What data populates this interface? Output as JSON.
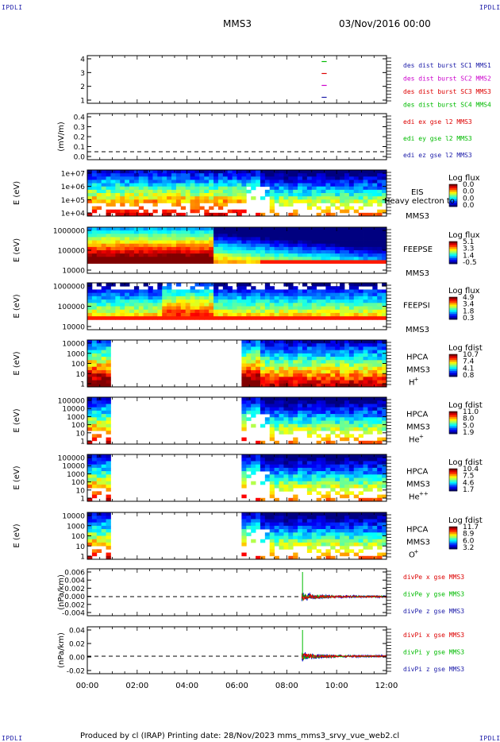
{
  "corner_labels": {
    "top_left": "IPDLI",
    "top_right": "IPDLI",
    "bottom_left": "IPDLI",
    "bottom_right": "IPDLI"
  },
  "header": {
    "spacecraft": "MMS3",
    "date": "03/Nov/2016 00:00"
  },
  "footer": {
    "text": "Produced by cl (IRAP)   Printing date: 28/Nov/2023   mms_mms3_srvy_vue_web2.cl"
  },
  "colors": {
    "red": "#dd0000",
    "green": "#00bb00",
    "blue": "#0000cc",
    "magenta": "#cc00cc",
    "navy": "#1a1aa8",
    "accent": "#ff0000"
  },
  "chart_data": [
    {
      "type": "line",
      "id": "sc-availability",
      "ylabel": "",
      "ytick_labels": [
        "4",
        "3",
        "2",
        "1"
      ],
      "ylim": [
        0.5,
        4.5
      ],
      "x_ticks": [
        "00:00",
        "02:00",
        "04:00",
        "06:00",
        "08:00",
        "10:00",
        "12:00"
      ],
      "xlim_hours": [
        0,
        12
      ],
      "series": [
        {
          "name": "des dist burst SC1 MMS1",
          "color": "#1a1aa8",
          "y": 1,
          "x_range": [
            9.4,
            9.6
          ]
        },
        {
          "name": "des dist burst SC2 MMS2",
          "color": "#cc00cc",
          "y": 2,
          "x_range": [
            9.4,
            9.6
          ]
        },
        {
          "name": "des dist burst SC3 MMS3",
          "color": "#dd0000",
          "y": 3,
          "x_range": [
            9.4,
            9.6
          ]
        },
        {
          "name": "des dist burst SC4 MMS4",
          "color": "#00bb00",
          "y": 4,
          "x_range": [
            9.4,
            9.6
          ]
        }
      ]
    },
    {
      "type": "line",
      "id": "edi-efield",
      "ylabel": "(mV/m)",
      "ytick_labels": [
        "0.4",
        "0.3",
        "0.2",
        "0.1",
        "0.0"
      ],
      "ylim": [
        -0.05,
        0.45
      ],
      "legend": [
        {
          "label": "edi ex gse l2 MMS3",
          "color": "#dd0000"
        },
        {
          "label": "edi ey gse l2 MMS3",
          "color": "#00bb00"
        },
        {
          "label": "edi ez gse l2 MMS3",
          "color": "#1a1aa8"
        }
      ]
    },
    {
      "type": "heatmap",
      "id": "eis",
      "ylabel": "E (eV)",
      "ytick_labels": [
        "1e+07",
        "1e+06",
        "1e+05",
        "1e+04"
      ],
      "instrument": [
        "EIS",
        "MMS3"
      ],
      "overlay_text": "Heavy electron to",
      "colorbar": {
        "title": "Log flux",
        "labels": [
          "0.0",
          "0.0",
          "0.0",
          "0.0"
        ]
      }
    },
    {
      "type": "heatmap",
      "id": "feepse",
      "ylabel": "E (eV)",
      "ytick_labels": [
        "1000000",
        "100000",
        "10000"
      ],
      "instrument": [
        "FEEPSE",
        "MMS3"
      ],
      "colorbar": {
        "title": "Log flux",
        "labels": [
          "5.1",
          "3.3",
          "1.4",
          "-0.5"
        ]
      }
    },
    {
      "type": "heatmap",
      "id": "feepsi",
      "ylabel": "E (eV)",
      "ytick_labels": [
        "1000000",
        "100000",
        "10000"
      ],
      "instrument": [
        "FEEPSI",
        "MMS3"
      ],
      "colorbar": {
        "title": "Log flux",
        "labels": [
          "4.9",
          "3.4",
          "1.8",
          "0.3"
        ]
      }
    },
    {
      "type": "heatmap",
      "id": "hpca-h",
      "ylabel": "E (eV)",
      "ytick_labels": [
        "10000",
        "1000",
        "100",
        "10",
        "1"
      ],
      "instrument": [
        "HPCA",
        "MMS3",
        "H",
        "+"
      ],
      "data_gaps_hours": [
        [
          1.0,
          6.2
        ]
      ],
      "colorbar": {
        "title": "Log fdist",
        "labels": [
          "10.7",
          "7.4",
          "4.1",
          "0.8"
        ]
      }
    },
    {
      "type": "heatmap",
      "id": "hpca-he",
      "ylabel": "E (eV)",
      "ytick_labels": [
        "100000",
        "10000",
        "1000",
        "100",
        "10",
        "1"
      ],
      "instrument": [
        "HPCA",
        "MMS3",
        "He",
        "+"
      ],
      "data_gaps_hours": [
        [
          1.0,
          6.2
        ]
      ],
      "colorbar": {
        "title": "Log fdist",
        "labels": [
          "11.0",
          "8.0",
          "5.0",
          "1.9"
        ]
      }
    },
    {
      "type": "heatmap",
      "id": "hpca-hepp",
      "ylabel": "E (eV)",
      "ytick_labels": [
        "100000",
        "10000",
        "1000",
        "100",
        "10",
        "1"
      ],
      "instrument": [
        "HPCA",
        "MMS3",
        "He",
        "++"
      ],
      "data_gaps_hours": [
        [
          1.0,
          6.2
        ]
      ],
      "colorbar": {
        "title": "Log fdist",
        "labels": [
          "10.4",
          "7.5",
          "4.6",
          "1.7"
        ]
      }
    },
    {
      "type": "heatmap",
      "id": "hpca-o",
      "ylabel": "E (eV)",
      "ytick_labels": [
        "10000",
        "1000",
        "100",
        "10",
        "1"
      ],
      "instrument": [
        "HPCA",
        "MMS3",
        "O",
        "+"
      ],
      "data_gaps_hours": [
        [
          1.0,
          6.2
        ]
      ],
      "colorbar": {
        "title": "Log fdist",
        "labels": [
          "11.7",
          "8.9",
          "6.0",
          "3.2"
        ]
      }
    },
    {
      "type": "line",
      "id": "divpe",
      "ylabel": "(nPa/km)",
      "ytick_labels": [
        "0.006",
        "0.004",
        "0.002",
        "0.000",
        "-0.002",
        "-0.004"
      ],
      "ylim": [
        -0.005,
        0.007
      ],
      "data_start_hours": 8.6,
      "legend": [
        {
          "label": "divPe x gse MMS3",
          "color": "#dd0000"
        },
        {
          "label": "divPe y gse MMS3",
          "color": "#00bb00"
        },
        {
          "label": "divPe z gse MMS3",
          "color": "#1a1aa8"
        }
      ]
    },
    {
      "type": "line",
      "id": "divpi",
      "ylabel": "(nPa/km)",
      "ytick_labels": [
        "0.04",
        "0.02",
        "0.00",
        "-0.02"
      ],
      "ylim": [
        -0.03,
        0.05
      ],
      "data_start_hours": 8.6,
      "legend": [
        {
          "label": "divPi x gse MMS3",
          "color": "#dd0000"
        },
        {
          "label": "divPi y gse MMS3",
          "color": "#00bb00"
        },
        {
          "label": "divPi z gse MMS3",
          "color": "#1a1aa8"
        }
      ]
    }
  ]
}
